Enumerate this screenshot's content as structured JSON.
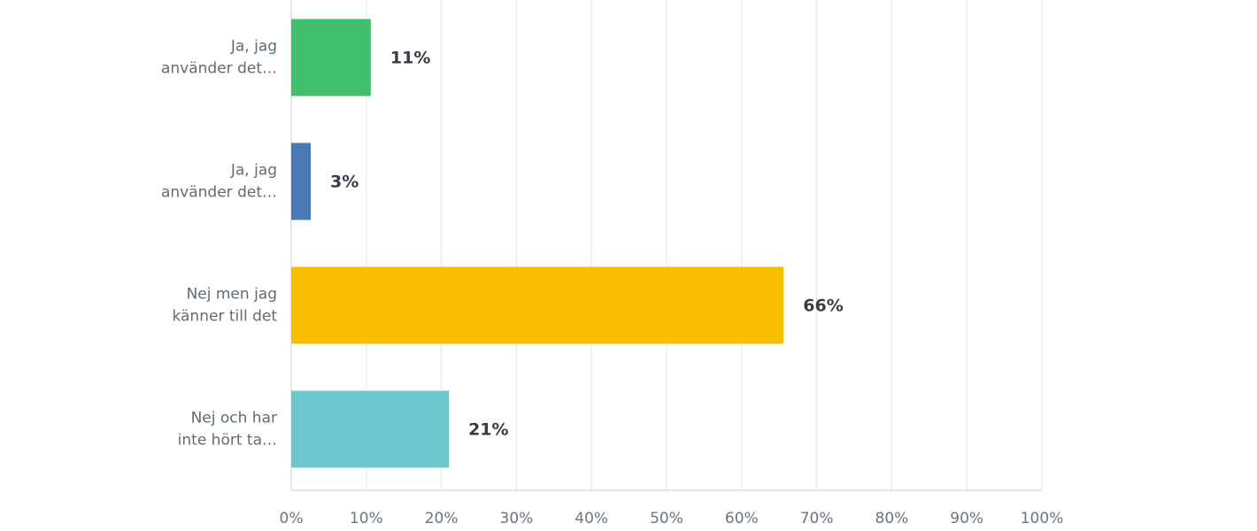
{
  "chart_data": {
    "type": "bar",
    "orientation": "horizontal",
    "categories": [
      [
        "Ja, jag",
        "använder det…"
      ],
      [
        "Ja, jag",
        "använder det…"
      ],
      [
        "Nej men jag",
        "känner till det"
      ],
      [
        "Nej och har",
        "inte hört ta…"
      ]
    ],
    "values": [
      10.6,
      2.6,
      65.6,
      21.0
    ],
    "value_labels": [
      "11%",
      "3%",
      "66%",
      "21%"
    ],
    "colors": [
      "#41bf6d",
      "#4b79b8",
      "#f8be00",
      "#6cc8cc"
    ],
    "xlim": [
      0,
      100
    ],
    "xticks": [
      {
        "value": 0,
        "label": "0%"
      },
      {
        "value": 10,
        "label": "10%"
      },
      {
        "value": 20,
        "label": "20%"
      },
      {
        "value": 30,
        "label": "30%"
      },
      {
        "value": 40,
        "label": "40%"
      },
      {
        "value": 50,
        "label": "50%"
      },
      {
        "value": 60,
        "label": "60%"
      },
      {
        "value": 70,
        "label": "70%"
      },
      {
        "value": 80,
        "label": "80%"
      },
      {
        "value": 90,
        "label": "90%"
      },
      {
        "value": 100,
        "label": "100%"
      }
    ],
    "grid": true
  }
}
